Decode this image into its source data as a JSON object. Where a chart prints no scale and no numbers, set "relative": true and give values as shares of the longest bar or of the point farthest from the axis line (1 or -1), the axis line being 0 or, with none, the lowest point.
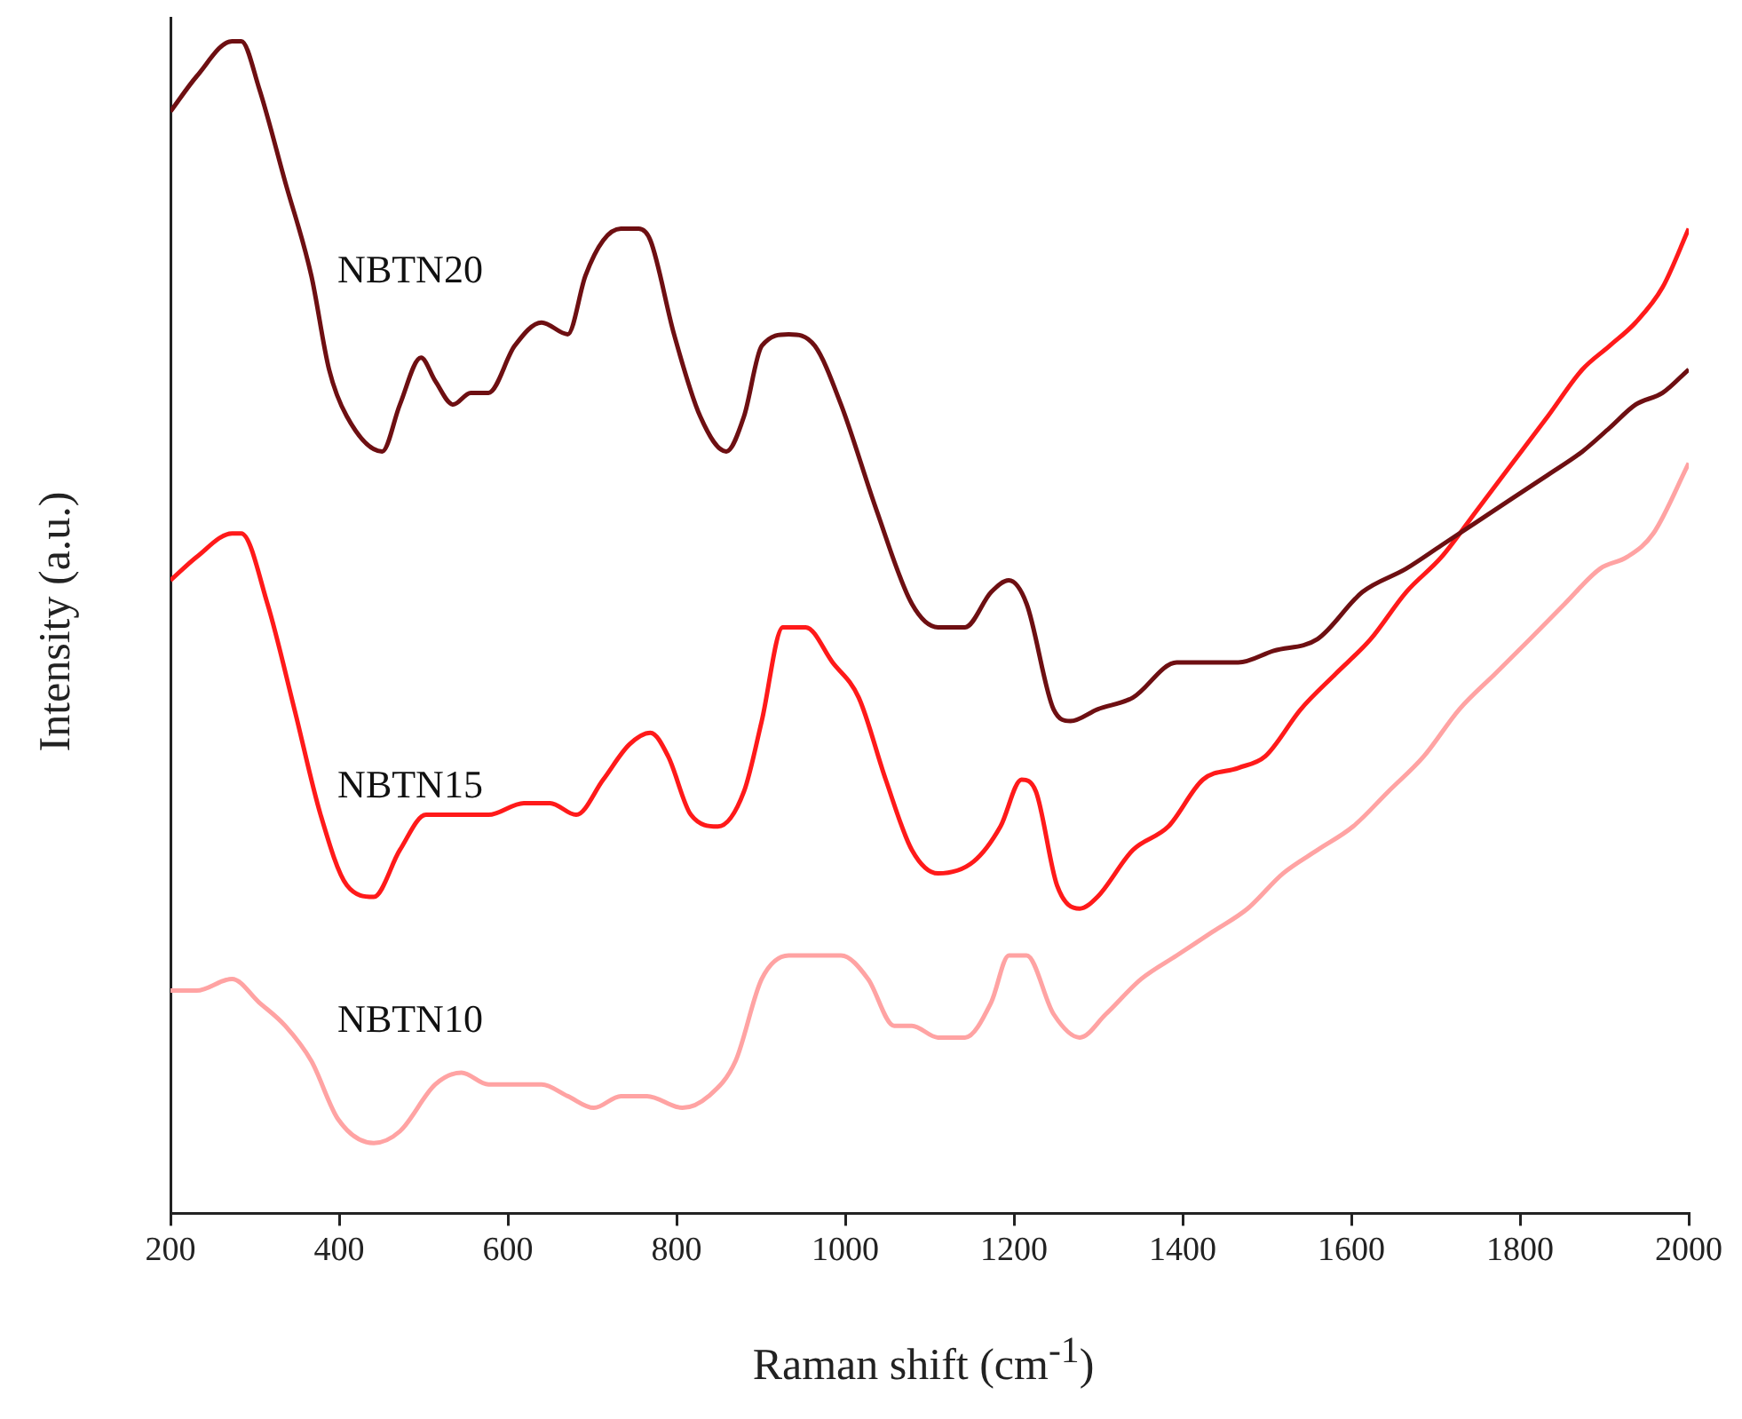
{
  "chart_data": {
    "type": "line",
    "xlabel": "Raman shift (cm$^{-1}$)",
    "ylabel": "Intensity (a.u.)",
    "relative": true,
    "xlim": [
      200,
      2000
    ],
    "xticks": [
      200,
      400,
      600,
      800,
      1000,
      1200,
      1400,
      1600,
      1800,
      2000
    ],
    "grid": false,
    "legend": false,
    "marker": "none",
    "line_style": "solid",
    "series": [
      {
        "name": "NBTN20",
        "color": "#6e0f12",
        "x": [
          200,
          231,
          273,
          284,
          305,
          336,
          367,
          388,
          409,
          451,
          472,
          497,
          514,
          535,
          556,
          577,
          608,
          640,
          671,
          692,
          713,
          734,
          755,
          769,
          797,
          828,
          859,
          880,
          901,
          933,
          964,
          995,
          1037,
          1079,
          1110,
          1142,
          1173,
          1194,
          1215,
          1247,
          1267,
          1299,
          1341,
          1393,
          1435,
          1466,
          1508,
          1560,
          1613,
          1665,
          1707,
          1749,
          1791,
          1833,
          1874,
          1906,
          1937,
          1969,
          2000
        ],
        "values": [
          0.94,
          0.97,
          1.0,
          1.0,
          0.96,
          0.88,
          0.8,
          0.72,
          0.68,
          0.65,
          0.69,
          0.73,
          0.71,
          0.69,
          0.7,
          0.7,
          0.74,
          0.76,
          0.75,
          0.8,
          0.83,
          0.84,
          0.84,
          0.83,
          0.75,
          0.68,
          0.65,
          0.68,
          0.74,
          0.75,
          0.74,
          0.69,
          0.6,
          0.52,
          0.5,
          0.5,
          0.53,
          0.54,
          0.52,
          0.43,
          0.42,
          0.43,
          0.44,
          0.47,
          0.47,
          0.47,
          0.48,
          0.49,
          0.53,
          0.55,
          0.57,
          0.59,
          0.61,
          0.63,
          0.65,
          0.67,
          0.69,
          0.7,
          0.72
        ]
      },
      {
        "name": "NBTN15",
        "color": "#ff1a1a",
        "x": [
          200,
          231,
          273,
          284,
          315,
          347,
          378,
          409,
          441,
          472,
          503,
          545,
          577,
          619,
          650,
          681,
          713,
          744,
          769,
          790,
          817,
          849,
          880,
          901,
          926,
          953,
          985,
          1016,
          1048,
          1079,
          1110,
          1152,
          1184,
          1209,
          1226,
          1251,
          1278,
          1299,
          1341,
          1383,
          1424,
          1466,
          1498,
          1540,
          1581,
          1623,
          1665,
          1707,
          1749,
          1791,
          1833,
          1874,
          1906,
          1937,
          1969,
          2000
        ],
        "values": [
          0.54,
          0.56,
          0.58,
          0.58,
          0.52,
          0.43,
          0.34,
          0.28,
          0.27,
          0.31,
          0.34,
          0.34,
          0.34,
          0.35,
          0.35,
          0.34,
          0.37,
          0.4,
          0.41,
          0.39,
          0.34,
          0.33,
          0.36,
          0.42,
          0.5,
          0.5,
          0.47,
          0.44,
          0.37,
          0.31,
          0.29,
          0.3,
          0.33,
          0.37,
          0.36,
          0.28,
          0.26,
          0.27,
          0.31,
          0.33,
          0.37,
          0.38,
          0.39,
          0.43,
          0.46,
          0.49,
          0.53,
          0.56,
          0.6,
          0.64,
          0.68,
          0.72,
          0.74,
          0.76,
          0.79,
          0.84
        ]
      },
      {
        "name": "NBTN10",
        "color": "#ffa3a3",
        "x": [
          200,
          231,
          273,
          305,
          336,
          367,
          399,
          441,
          472,
          514,
          545,
          577,
          608,
          640,
          671,
          702,
          734,
          765,
          807,
          838,
          870,
          901,
          933,
          964,
          995,
          1027,
          1058,
          1079,
          1110,
          1142,
          1173,
          1194,
          1215,
          1247,
          1278,
          1309,
          1351,
          1393,
          1435,
          1477,
          1519,
          1560,
          1602,
          1644,
          1686,
          1728,
          1770,
          1812,
          1853,
          1895,
          1927,
          1958,
          2000
        ],
        "values": [
          0.19,
          0.19,
          0.2,
          0.18,
          0.16,
          0.13,
          0.08,
          0.06,
          0.07,
          0.11,
          0.12,
          0.11,
          0.11,
          0.11,
          0.1,
          0.09,
          0.1,
          0.1,
          0.09,
          0.1,
          0.13,
          0.2,
          0.22,
          0.22,
          0.22,
          0.2,
          0.16,
          0.16,
          0.15,
          0.15,
          0.18,
          0.22,
          0.22,
          0.17,
          0.15,
          0.17,
          0.2,
          0.22,
          0.24,
          0.26,
          0.29,
          0.31,
          0.33,
          0.36,
          0.39,
          0.43,
          0.46,
          0.49,
          0.52,
          0.55,
          0.56,
          0.58,
          0.64
        ]
      }
    ]
  }
}
